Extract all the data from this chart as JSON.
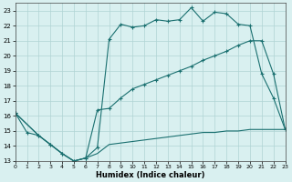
{
  "xlabel": "Humidex (Indice chaleur)",
  "background_color": "#d9f0f0",
  "grid_color": "#b0d4d4",
  "line_color": "#1a7070",
  "xlim": [
    0,
    23
  ],
  "ylim": [
    13,
    23.5
  ],
  "yticks": [
    13,
    14,
    15,
    16,
    17,
    18,
    19,
    20,
    21,
    22,
    23
  ],
  "xticks": [
    0,
    1,
    2,
    3,
    4,
    5,
    6,
    7,
    8,
    9,
    10,
    11,
    12,
    13,
    14,
    15,
    16,
    17,
    18,
    19,
    20,
    21,
    22,
    23
  ],
  "line1_x": [
    0,
    1,
    2,
    3,
    4,
    5,
    6,
    7,
    8,
    9,
    10,
    11,
    12,
    13,
    14,
    15,
    16,
    17,
    18,
    19,
    20,
    21,
    22,
    23
  ],
  "line1_y": [
    16.2,
    14.9,
    14.7,
    14.1,
    13.5,
    13.0,
    13.2,
    13.9,
    21.1,
    22.1,
    21.9,
    22.0,
    22.4,
    22.3,
    22.4,
    23.2,
    22.3,
    22.9,
    22.8,
    22.1,
    22.0,
    18.8,
    17.2,
    15.1
  ],
  "line2_x": [
    0,
    2,
    3,
    4,
    5,
    6,
    7,
    8,
    9,
    10,
    11,
    12,
    13,
    14,
    15,
    16,
    17,
    18,
    19,
    20,
    21,
    22,
    23
  ],
  "line2_y": [
    16.2,
    14.7,
    14.1,
    13.5,
    13.0,
    13.2,
    16.4,
    16.5,
    17.2,
    17.8,
    18.1,
    18.4,
    18.7,
    19.0,
    19.3,
    19.7,
    20.0,
    20.3,
    20.7,
    21.0,
    21.0,
    18.8,
    15.1
  ],
  "line3_x": [
    0,
    2,
    3,
    4,
    5,
    6,
    7,
    8,
    9,
    10,
    11,
    12,
    13,
    14,
    15,
    16,
    17,
    18,
    19,
    20,
    21,
    22,
    23
  ],
  "line3_y": [
    16.2,
    14.7,
    14.1,
    13.5,
    13.0,
    13.2,
    13.5,
    14.1,
    14.2,
    14.3,
    14.4,
    14.5,
    14.6,
    14.7,
    14.8,
    14.9,
    14.9,
    15.0,
    15.0,
    15.1,
    15.1,
    15.1,
    15.1
  ]
}
